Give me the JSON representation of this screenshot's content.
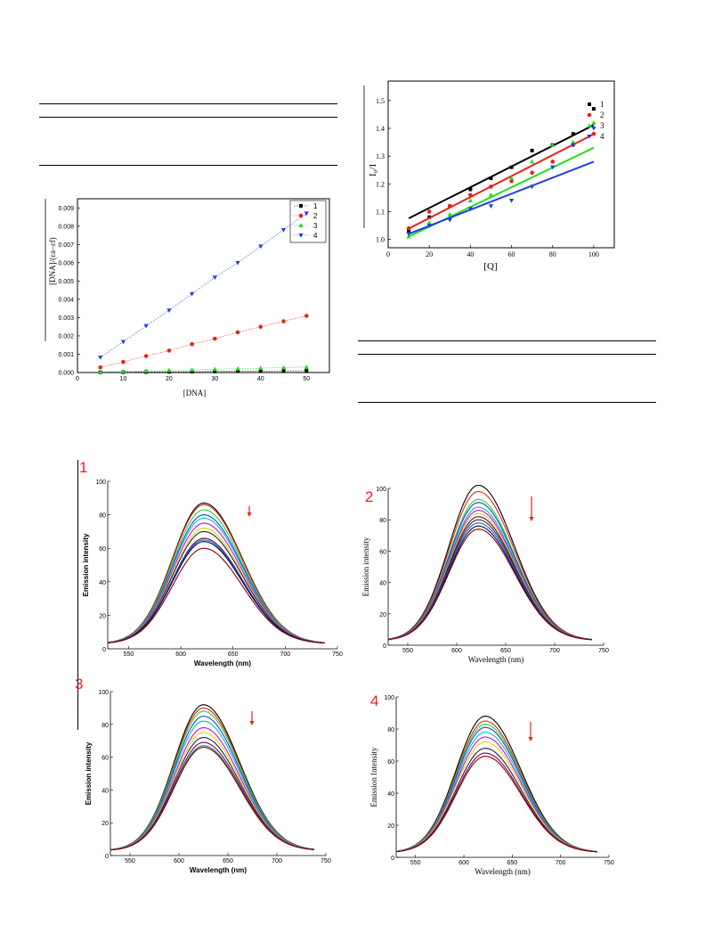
{
  "panels": {
    "emission_1": "1",
    "emission_2": "2",
    "emission_3": "3",
    "emission_4": "4"
  },
  "colors": {
    "s1": "#000000",
    "s2": "#e8221c",
    "s3": "#1fdc1f",
    "s4": "#1f3fe0",
    "arrow": "#e8221c"
  },
  "chart_data": [
    {
      "type": "line",
      "x": [
        5,
        10,
        15,
        20,
        25,
        30,
        35,
        40,
        45,
        50
      ],
      "series": [
        {
          "name": "1",
          "color": "#000000",
          "marker": "square",
          "values": [
            1e-05,
            2e-05,
            3e-05,
            4e-05,
            5e-05,
            6e-05,
            7e-05,
            8e-05,
            9e-05,
            0.0001
          ]
        },
        {
          "name": "2",
          "color": "#e8221c",
          "marker": "circle",
          "values": [
            0.00028,
            0.00058,
            0.0009,
            0.0012,
            0.00155,
            0.00185,
            0.0022,
            0.0025,
            0.0028,
            0.0031
          ]
        },
        {
          "name": "3",
          "color": "#1fdc1f",
          "marker": "triangle-up",
          "values": [
            3e-05,
            6e-05,
            9e-05,
            0.00012,
            0.00015,
            0.00018,
            0.00021,
            0.00024,
            0.00027,
            0.0003
          ]
        },
        {
          "name": "4",
          "color": "#1f3fe0",
          "marker": "triangle-down",
          "values": [
            0.00083,
            0.00168,
            0.00255,
            0.0034,
            0.0043,
            0.0052,
            0.006,
            0.0069,
            0.0078,
            0.0087
          ]
        }
      ],
      "xlabel": "[DNA]",
      "ylabel": "[DNA]/(εa−εf)",
      "xlim": [
        0,
        55
      ],
      "ylim": [
        0,
        0.0095
      ],
      "xticks": [
        "0",
        "10",
        "20",
        "30",
        "40",
        "50"
      ],
      "yticks": [
        "0.000",
        "0.001",
        "0.002",
        "0.003",
        "0.004",
        "0.005",
        "0.006",
        "0.007",
        "0.008",
        "0.009"
      ],
      "legend": "top-right"
    },
    {
      "type": "scatter",
      "x": [
        10,
        20,
        30,
        40,
        50,
        60,
        70,
        80,
        90,
        100
      ],
      "series": [
        {
          "name": "1",
          "color": "#000000",
          "marker": "square",
          "values": [
            1.03,
            1.08,
            1.12,
            1.18,
            1.22,
            1.26,
            1.32,
            1.34,
            1.38,
            1.47
          ],
          "fit": [
            1.076,
            1.412
          ]
        },
        {
          "name": "2",
          "color": "#e8221c",
          "marker": "circle",
          "values": [
            1.04,
            1.1,
            1.12,
            1.16,
            1.19,
            1.21,
            1.24,
            1.28,
            1.34,
            1.38
          ],
          "fit": [
            1.039,
            1.379
          ]
        },
        {
          "name": "3",
          "color": "#1fdc1f",
          "marker": "triangle-up",
          "values": [
            1.01,
            1.06,
            1.09,
            1.14,
            1.16,
            1.22,
            1.28,
            1.34,
            1.35,
            1.42
          ],
          "fit": [
            1.01,
            1.33
          ]
        },
        {
          "name": "4",
          "color": "#1f3fe0",
          "marker": "triangle-down",
          "values": [
            1.02,
            1.05,
            1.07,
            1.11,
            1.12,
            1.14,
            1.19,
            1.26,
            1.34,
            1.4
          ],
          "fit": [
            1.02,
            1.28
          ]
        }
      ],
      "xlabel": "[Q]",
      "ylabel": "I₀/I",
      "xlim": [
        0,
        110
      ],
      "ylim": [
        0.97,
        1.57
      ],
      "xticks": [
        "0",
        "20",
        "40",
        "60",
        "80",
        "100"
      ],
      "yticks": [
        "1.0",
        "1.1",
        "1.2",
        "1.3",
        "1.4",
        "1.5"
      ],
      "legend": "top-right"
    },
    {
      "type": "line",
      "panel": "1",
      "xlabel": "Wavelength (nm)",
      "ylabel": "Emission intensity",
      "xlim": [
        530,
        750
      ],
      "ylim": [
        0,
        100
      ],
      "xticks": [
        "550",
        "600",
        "650",
        "700",
        "750"
      ],
      "yticks": [
        "0",
        "20",
        "40",
        "60",
        "80",
        "100"
      ],
      "peak_x": 622,
      "peaks": [
        84,
        83,
        80,
        77,
        75,
        72,
        69,
        67,
        63,
        62,
        61,
        57
      ],
      "curve_colors": [
        "#000000",
        "#e8221c",
        "#1fdc1f",
        "#1f3fe0",
        "#00c0c0",
        "#e000e0",
        "#d8d800",
        "#222244",
        "#7a0060",
        "#008080",
        "#000080",
        "#8b0000"
      ]
    },
    {
      "type": "line",
      "panel": "2",
      "xlabel": "Wavelength (nm)",
      "ylabel": "Emission intensity",
      "xlim": [
        530,
        750
      ],
      "ylim": [
        0,
        100
      ],
      "xticks": [
        "550",
        "600",
        "650",
        "700",
        "750"
      ],
      "yticks": [
        "0",
        "20",
        "40",
        "60",
        "80",
        "100"
      ],
      "peak_x": 622,
      "peaks": [
        99,
        95,
        90,
        88,
        85,
        83,
        81,
        79,
        77,
        75,
        73,
        71
      ],
      "curve_colors": [
        "#000000",
        "#e8221c",
        "#1fdc1f",
        "#1f3fe0",
        "#00c0c0",
        "#e000e0",
        "#d8d800",
        "#222244",
        "#7a0060",
        "#008080",
        "#000080",
        "#8b0000"
      ]
    },
    {
      "type": "line",
      "panel": "3",
      "xlabel": "Wavelength (nm)",
      "ylabel": "Emission intensity",
      "xlim": [
        530,
        750
      ],
      "ylim": [
        0,
        100
      ],
      "xticks": [
        "550",
        "600",
        "650",
        "700",
        "750"
      ],
      "yticks": [
        "0",
        "20",
        "40",
        "60",
        "80",
        "100"
      ],
      "peak_x": 625,
      "peaks": [
        89,
        87,
        85,
        82,
        79,
        75,
        72,
        69,
        66,
        64,
        63
      ],
      "curve_colors": [
        "#000000",
        "#e8221c",
        "#1fdc1f",
        "#1f3fe0",
        "#00c0c0",
        "#e000e0",
        "#d8d800",
        "#222244",
        "#7a0060",
        "#008080",
        "#8b0000"
      ]
    },
    {
      "type": "line",
      "panel": "4",
      "xlabel": "Wavelength (nm)",
      "ylabel": "Emission Intensity",
      "xlim": [
        530,
        750
      ],
      "ylim": [
        0,
        100
      ],
      "xticks": [
        "550",
        "600",
        "650",
        "700",
        "750"
      ],
      "yticks": [
        "0",
        "20",
        "40",
        "60",
        "80",
        "100"
      ],
      "peak_x": 622,
      "peaks": [
        85,
        82,
        80,
        78,
        75,
        72,
        69,
        65,
        62,
        60
      ],
      "curve_colors": [
        "#000000",
        "#e8221c",
        "#1fdc1f",
        "#1f3fe0",
        "#00c0c0",
        "#e000e0",
        "#d8d800",
        "#222244",
        "#7a0060",
        "#8b0000"
      ]
    }
  ]
}
